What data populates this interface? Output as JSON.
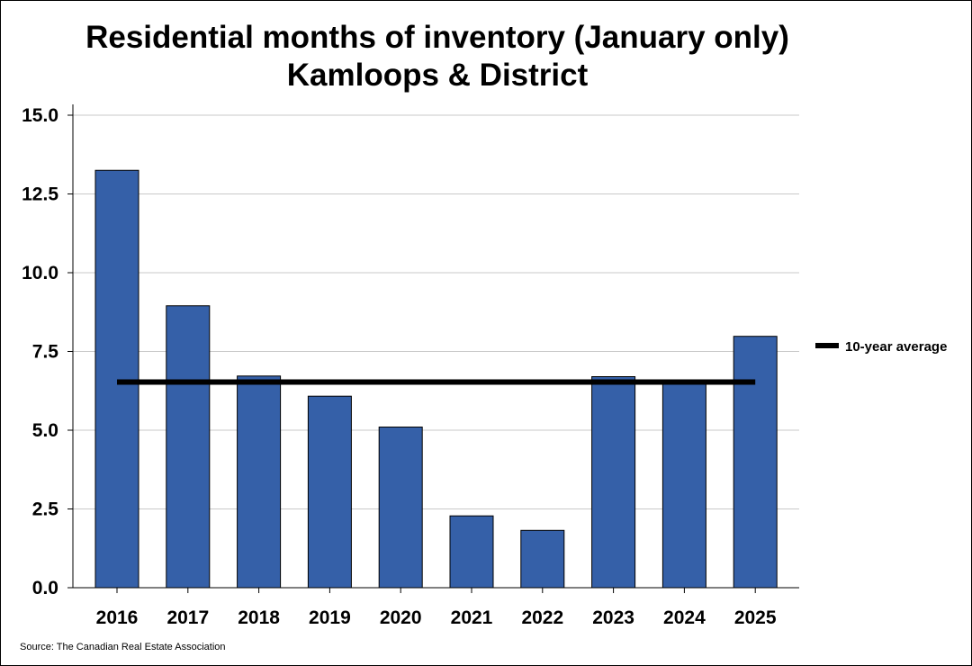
{
  "chart_data": {
    "type": "bar",
    "title": "Residential months of inventory (January only)",
    "subtitle": "Kamloops & District",
    "categories": [
      "2016",
      "2017",
      "2018",
      "2019",
      "2020",
      "2021",
      "2022",
      "2023",
      "2024",
      "2025"
    ],
    "series": [
      {
        "values": [
          13.25,
          8.95,
          6.72,
          6.08,
          5.1,
          2.28,
          1.82,
          6.7,
          6.52,
          7.98
        ],
        "color": "#3560a8"
      }
    ],
    "average_line": {
      "name": "10-year average",
      "value": 6.53,
      "color": "#000000"
    },
    "ylim": [
      0,
      15
    ],
    "yticks": [
      0,
      2.5,
      5,
      7.5,
      10,
      12.5,
      15
    ],
    "ytick_labels": [
      "0.0",
      "2.5",
      "5.0",
      "7.5",
      "10.0",
      "12.5",
      "15.0"
    ],
    "grid": true,
    "legend_position": "right",
    "xlabel": "",
    "ylabel": ""
  },
  "source": "Source: The Canadian Real Estate Association"
}
